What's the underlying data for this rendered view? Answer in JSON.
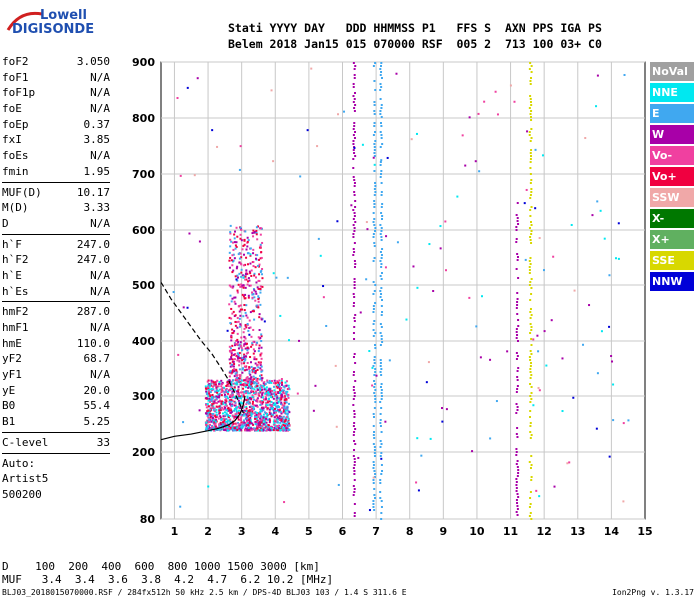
{
  "logo": {
    "line1": "Lowell",
    "line2": "DIGISONDE"
  },
  "header": {
    "line1": "Stati YYYY DAY   DDD HHMMSS P1   FFS S  AXN PPS IGA PS",
    "line2": "Belem 2018 Jan15 015 070000 RSF  005 2  713 100 03+ C0"
  },
  "params": [
    {
      "group": [
        {
          "k": "foF2",
          "v": "3.050"
        },
        {
          "k": "foF1",
          "v": "N/A"
        },
        {
          "k": "foF1p",
          "v": "N/A"
        },
        {
          "k": "foE",
          "v": "N/A"
        },
        {
          "k": "foEp",
          "v": "0.37"
        },
        {
          "k": "fxI",
          "v": "3.85"
        },
        {
          "k": "foEs",
          "v": "N/A"
        },
        {
          "k": "fmin",
          "v": "1.95"
        }
      ]
    },
    {
      "group": [
        {
          "k": "MUF(D)",
          "v": "10.17"
        },
        {
          "k": "M(D)",
          "v": "3.33"
        },
        {
          "k": "D",
          "v": "N/A"
        }
      ]
    },
    {
      "group": [
        {
          "k": "h`F",
          "v": "247.0"
        },
        {
          "k": "h`F2",
          "v": "247.0"
        },
        {
          "k": "h`E",
          "v": "N/A"
        },
        {
          "k": "h`Es",
          "v": "N/A"
        }
      ]
    },
    {
      "group": [
        {
          "k": "hmF2",
          "v": "287.0"
        },
        {
          "k": "hmF1",
          "v": "N/A"
        },
        {
          "k": "hmE",
          "v": "110.0"
        },
        {
          "k": "yF2",
          "v": "68.7"
        },
        {
          "k": "yF1",
          "v": "N/A"
        },
        {
          "k": "yE",
          "v": "20.0"
        },
        {
          "k": "B0",
          "v": "55.4"
        },
        {
          "k": "B1",
          "v": "5.25"
        }
      ]
    },
    {
      "group": [
        {
          "k": "C-level",
          "v": "33"
        }
      ]
    },
    {
      "group": [
        {
          "k": "Auto:",
          "v": ""
        },
        {
          "k": "Artist5",
          "v": ""
        },
        {
          "k": "500200",
          "v": ""
        }
      ]
    }
  ],
  "legend": [
    {
      "label": "NoVal",
      "color": "#a0a0a0"
    },
    {
      "label": "NNE",
      "color": "#00e8f0"
    },
    {
      "label": "E",
      "color": "#40a8f0"
    },
    {
      "label": "W",
      "color": "#a800a8"
    },
    {
      "label": "Vo-",
      "color": "#f040a0"
    },
    {
      "label": "Vo+",
      "color": "#f00040"
    },
    {
      "label": "SSW",
      "color": "#f0a8a8"
    },
    {
      "label": "X-",
      "color": "#007800"
    },
    {
      "label": "X+",
      "color": "#60b060"
    },
    {
      "label": "SSE",
      "color": "#d8d800"
    },
    {
      "label": "NNW",
      "color": "#0000d8"
    }
  ],
  "dmuf": {
    "d_line": "D    100  200  400  600  800 1000 1500 3000 [km]",
    "muf_line": "MUF   3.4  3.4  3.6  3.8  4.2  4.7  6.2 10.2 [MHz]"
  },
  "footer": {
    "left": "BLJ03_2018015070000.RSF / 284fx512h 50 kHz 2.5 km / DPS-4D BLJ03 103 / 1.4 S 311.6 E",
    "right": "Ion2Png v. 1.3.17"
  },
  "chart_data": {
    "type": "scatter",
    "title": "",
    "xlabel": "",
    "ylabel": "",
    "xlim": [
      0.6,
      15.0
    ],
    "ylim": [
      80,
      900
    ],
    "x_ticks": [
      1,
      2,
      3,
      4,
      5,
      6,
      7,
      8,
      9,
      10,
      11,
      12,
      13,
      14,
      15
    ],
    "y_ticks": [
      80,
      200,
      300,
      400,
      500,
      600,
      700,
      800,
      900
    ],
    "grid": true,
    "legend_position": "right",
    "traces": [
      {
        "name": "O-trace profile (dashed)",
        "style": "dashed",
        "x": [
          0.6,
          0.9,
          1.2,
          1.5,
          1.8,
          2.1,
          2.4,
          2.6,
          2.8,
          2.95,
          3.05
        ],
        "y": [
          505,
          475,
          450,
          425,
          400,
          378,
          350,
          330,
          305,
          285,
          270
        ]
      },
      {
        "name": "O-trace profile (solid)",
        "style": "solid",
        "x": [
          0.6,
          1.0,
          1.5,
          2.0,
          2.3,
          2.6,
          2.8,
          2.95,
          3.05,
          3.1
        ],
        "y": [
          222,
          228,
          232,
          238,
          242,
          248,
          256,
          268,
          285,
          300
        ]
      }
    ],
    "echo_clusters": [
      {
        "x_range": [
          1.9,
          4.4
        ],
        "y_range": [
          240,
          330
        ],
        "colors": [
          "Vo-",
          "Vo+",
          "W",
          "E",
          "NNE"
        ],
        "density": "high"
      },
      {
        "x_range": [
          2.6,
          3.6
        ],
        "y_range": [
          330,
          610
        ],
        "colors": [
          "Vo-",
          "Vo+",
          "W",
          "E"
        ],
        "density": "medium"
      }
    ],
    "vertical_bands": [
      {
        "x": 6.35,
        "y_range": [
          80,
          900
        ],
        "color": "W"
      },
      {
        "x": 6.95,
        "y_range": [
          80,
          900
        ],
        "color": "E"
      },
      {
        "x": 7.15,
        "y_range": [
          80,
          900
        ],
        "color": "E"
      },
      {
        "x": 11.2,
        "y_range": [
          80,
          650
        ],
        "color": "W"
      },
      {
        "x": 11.6,
        "y_range": [
          80,
          900
        ],
        "color": "SSE"
      }
    ]
  }
}
